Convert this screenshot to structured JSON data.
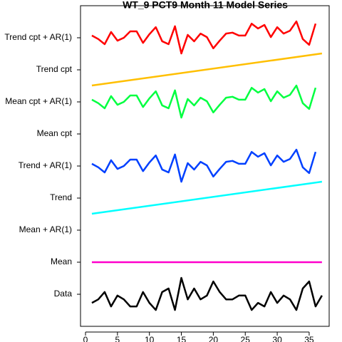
{
  "chart_data": {
    "type": "line",
    "title": "WT_9 PCT9 Month 11 Model Series",
    "x": [
      1,
      2,
      3,
      4,
      5,
      6,
      7,
      8,
      9,
      10,
      11,
      12,
      13,
      14,
      15,
      16,
      17,
      18,
      19,
      20,
      21,
      22,
      23,
      24,
      25,
      26,
      27,
      28,
      29,
      30,
      31,
      32,
      33,
      34,
      35,
      36,
      37
    ],
    "xlim": [
      -0.78,
      38.13
    ],
    "xticks": [
      0,
      5,
      10,
      15,
      20,
      25,
      30,
      35
    ],
    "ylim": [
      0,
      10
    ],
    "yticks": [
      {
        "value": 1,
        "label": "Data"
      },
      {
        "value": 2,
        "label": "Mean"
      },
      {
        "value": 3,
        "label": "Mean + AR(1)"
      },
      {
        "value": 4,
        "label": "Trend"
      },
      {
        "value": 5,
        "label": "Trend + AR(1)"
      },
      {
        "value": 6,
        "label": "Mean cpt"
      },
      {
        "value": 7,
        "label": "Mean cpt + AR(1)"
      },
      {
        "value": 8,
        "label": "Trend cpt"
      },
      {
        "value": 9,
        "label": "Trend cpt + AR(1)"
      }
    ],
    "series": [
      {
        "color": "#000000",
        "values": [
          0.73,
          0.84,
          1.07,
          0.62,
          0.96,
          0.84,
          0.62,
          0.62,
          1.07,
          0.73,
          0.51,
          1.07,
          1.18,
          0.51,
          1.51,
          0.84,
          1.18,
          0.84,
          0.96,
          1.4,
          1.07,
          0.84,
          0.84,
          0.96,
          0.96,
          0.51,
          0.73,
          0.62,
          1.07,
          0.73,
          0.96,
          0.84,
          0.51,
          1.18,
          1.4,
          0.62,
          0.96
        ]
      },
      {
        "color": "#ff00cc",
        "x": [
          1,
          37
        ],
        "values": [
          2,
          2
        ]
      },
      {
        "color": "#00ffff",
        "x": [
          1,
          37
        ],
        "values": [
          3.51,
          4.51
        ]
      },
      {
        "color": "#0040ff",
        "values": [
          5.07,
          4.96,
          4.8,
          5.18,
          4.91,
          5.0,
          5.2,
          5.2,
          4.84,
          5.11,
          5.33,
          4.89,
          4.8,
          5.36,
          4.51,
          5.09,
          4.89,
          5.13,
          5.02,
          4.67,
          4.91,
          5.13,
          5.16,
          5.07,
          5.07,
          5.44,
          5.29,
          5.4,
          5.02,
          5.33,
          5.13,
          5.22,
          5.51,
          4.96,
          4.78,
          5.44,
          null
        ]
      },
      {
        "color": "#00ff40",
        "values": [
          7.07,
          6.96,
          6.8,
          7.18,
          6.91,
          7.0,
          7.2,
          7.2,
          6.84,
          7.11,
          7.33,
          6.89,
          6.8,
          7.36,
          6.51,
          7.09,
          6.89,
          7.13,
          7.02,
          6.67,
          6.91,
          7.13,
          7.16,
          7.07,
          7.07,
          7.44,
          7.29,
          7.4,
          7.02,
          7.33,
          7.13,
          7.22,
          7.51,
          6.96,
          6.78,
          7.44,
          null
        ]
      },
      {
        "color": "#ffbf00",
        "x": [
          1,
          37
        ],
        "values": [
          7.51,
          8.51
        ]
      },
      {
        "color": "#ff0000",
        "values": [
          9.07,
          8.96,
          8.8,
          9.18,
          8.91,
          9.0,
          9.2,
          9.2,
          8.84,
          9.11,
          9.33,
          8.89,
          8.8,
          9.36,
          8.51,
          9.09,
          8.89,
          9.13,
          9.02,
          8.67,
          8.91,
          9.13,
          9.16,
          9.07,
          9.07,
          9.44,
          9.29,
          9.4,
          9.02,
          9.33,
          9.13,
          9.22,
          9.51,
          8.96,
          8.78,
          9.44,
          null
        ]
      }
    ]
  }
}
